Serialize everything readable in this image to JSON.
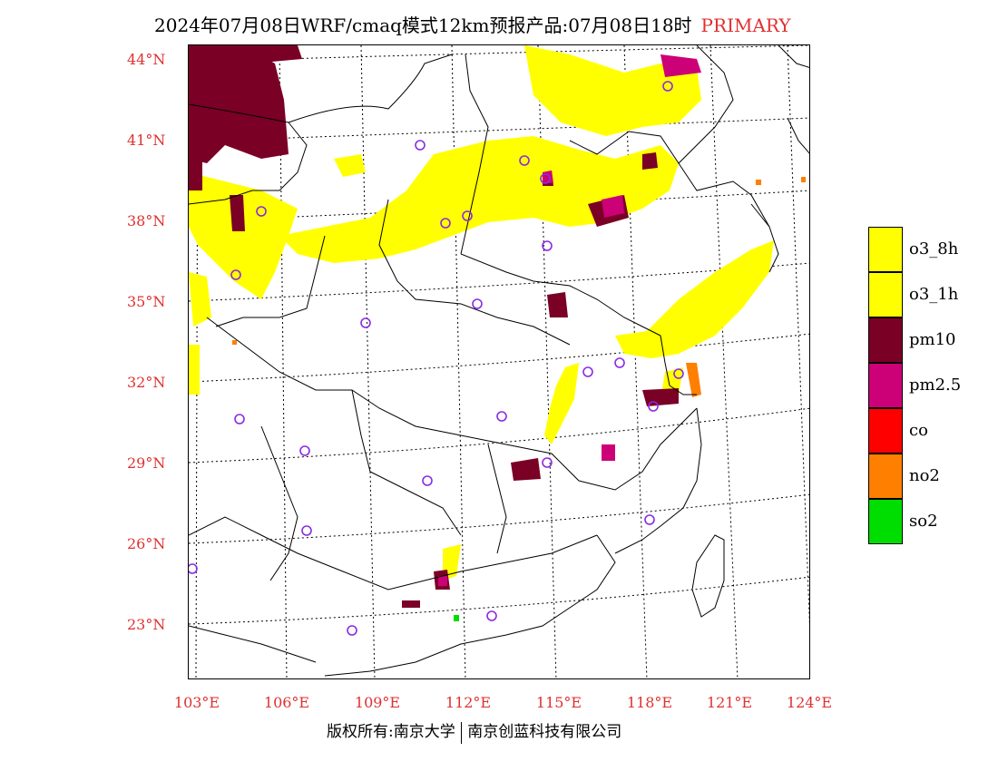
{
  "title": {
    "main": "2024年07月08日WRF/cmaq模式12km预报产品:07月08日18时",
    "tag": "PRIMARY",
    "tag_color": "#e03030"
  },
  "axes": {
    "latitude_labels": [
      "44°N",
      "41°N",
      "38°N",
      "35°N",
      "32°N",
      "29°N",
      "26°N",
      "23°N"
    ],
    "longitude_labels": [
      "103°E",
      "106°E",
      "109°E",
      "112°E",
      "115°E",
      "118°E",
      "121°E",
      "124°E"
    ],
    "label_color": "#e03030"
  },
  "legend": [
    {
      "label": "o3_8h",
      "color": "#ffff00"
    },
    {
      "label": "o3_1h",
      "color": "#ffff00"
    },
    {
      "label": "pm10",
      "color": "#7a0026"
    },
    {
      "label": "pm2.5",
      "color": "#cc0077"
    },
    {
      "label": "co",
      "color": "#ff0000"
    },
    {
      "label": "no2",
      "color": "#ff7f00"
    },
    {
      "label": "so2",
      "color": "#00dd00"
    }
  ],
  "footer": {
    "left": "版权所有:南京大学",
    "right": "南京创蓝科技有限公司"
  }
}
